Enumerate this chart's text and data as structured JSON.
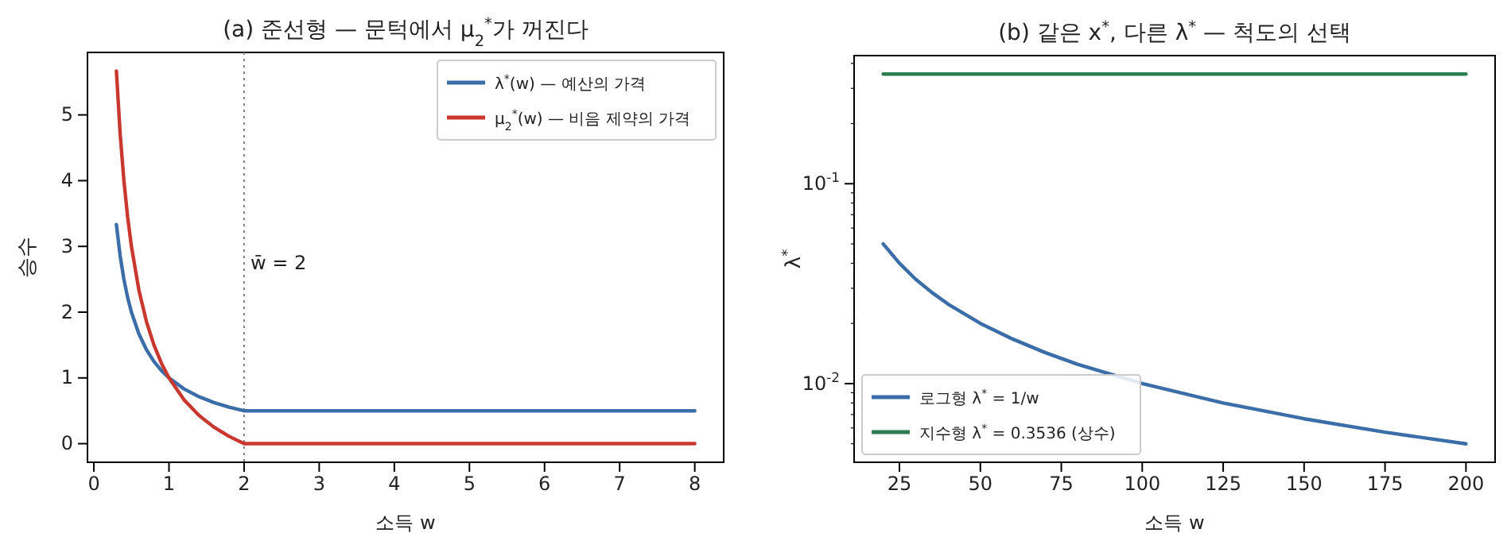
{
  "chart_data": [
    {
      "type": "line",
      "title": "(a) 준선형 — 문턱에서 μ$_{2}$$^{*}$가 꺼진다",
      "xlabel": "소득 w",
      "ylabel": "승수",
      "xlim": [
        -0.085,
        8.385
      ],
      "ylim": [
        -0.283,
        5.95
      ],
      "xticks": [
        0,
        1,
        2,
        3,
        4,
        5,
        6,
        7,
        8
      ],
      "yticks": [
        0,
        1,
        2,
        3,
        4,
        5
      ],
      "legend": "top right",
      "series": [
        {
          "name": "λ$^{*}$(w) — 예산의 가격",
          "color": "#3b6ea8",
          "x": [
            0.3,
            0.35,
            0.4,
            0.45,
            0.5,
            0.6,
            0.7,
            0.8,
            0.9,
            1,
            1.2,
            1.4,
            1.6,
            1.8,
            2,
            8
          ],
          "values": [
            3.333,
            2.857,
            2.5,
            2.222,
            2,
            1.667,
            1.429,
            1.25,
            1.111,
            1,
            0.833,
            0.714,
            0.625,
            0.556,
            0.5,
            0.5
          ]
        },
        {
          "name": "μ$_{2}$$^{*}$(w) — 비음 제약의 가격",
          "color": "#c8382e",
          "x": [
            0.3,
            0.35,
            0.4,
            0.45,
            0.5,
            0.6,
            0.7,
            0.8,
            0.9,
            1,
            1.2,
            1.4,
            1.6,
            1.8,
            2,
            8
          ],
          "values": [
            5.667,
            4.714,
            4,
            3.444,
            3,
            2.333,
            1.857,
            1.5,
            1.222,
            1,
            0.667,
            0.429,
            0.25,
            0.111,
            0,
            0
          ]
        }
      ],
      "ref_lines": [
        {
          "axis": "x",
          "value": 2,
          "label": "w̄ = 2",
          "color": "#808080",
          "line_style": "dotted"
        }
      ]
    },
    {
      "type": "line",
      "title": "(b) 같은 x$^{*}$, 다른 λ$^{*}$ — 척도의 선택",
      "xlabel": "소득 w",
      "ylabel": "λ$^{*}$",
      "log": "y",
      "xlim": [
        11,
        209
      ],
      "ylim": [
        0.00404,
        0.4375
      ],
      "xticks": [
        25,
        50,
        75,
        100,
        125,
        150,
        175,
        200
      ],
      "yticks": [
        {
          "value": 0.005,
          "label": null
        },
        {
          "value": 0.006,
          "label": null
        },
        {
          "value": 0.007,
          "label": null
        },
        {
          "value": 0.008,
          "label": null
        },
        {
          "value": 0.009,
          "label": null
        },
        {
          "value": 0.01,
          "label": "10$^{-2}$"
        },
        {
          "value": 0.02,
          "label": null
        },
        {
          "value": 0.03,
          "label": null
        },
        {
          "value": 0.04,
          "label": null
        },
        {
          "value": 0.05,
          "label": null
        },
        {
          "value": 0.06,
          "label": null
        },
        {
          "value": 0.07,
          "label": null
        },
        {
          "value": 0.08,
          "label": null
        },
        {
          "value": 0.09,
          "label": null
        },
        {
          "value": 0.1,
          "label": "10$^{-1}$"
        },
        {
          "value": 0.2,
          "label": null
        },
        {
          "value": 0.3,
          "label": null
        },
        {
          "value": 0.4,
          "label": null
        }
      ],
      "legend": "bottom left",
      "series": [
        {
          "name": "로그형 λ$^{*}$ = 1/w",
          "color": "#3b6ea8",
          "x": [
            20,
            25,
            30,
            35,
            40,
            50,
            60,
            70,
            80,
            100,
            125,
            150,
            175,
            200
          ],
          "values": [
            0.05,
            0.04,
            0.0333,
            0.0286,
            0.025,
            0.02,
            0.0167,
            0.0143,
            0.0125,
            0.01,
            0.008,
            0.00667,
            0.00571,
            0.005
          ]
        },
        {
          "name": "지수형 λ$^{*}$ = 0.3536 (상수)",
          "color": "#2e7d52",
          "x": [
            20,
            200
          ],
          "values": [
            0.3536,
            0.3536
          ]
        }
      ]
    }
  ]
}
